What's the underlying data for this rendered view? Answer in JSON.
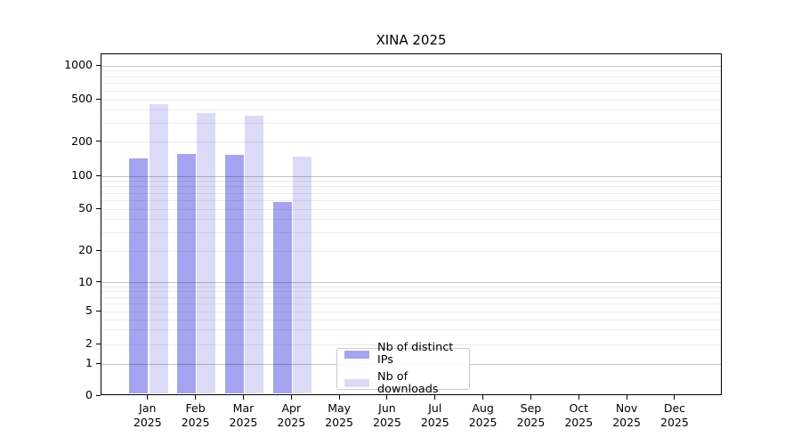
{
  "chart_data": {
    "type": "bar",
    "title": "XINA 2025",
    "x_categories": [
      {
        "month": "Jan",
        "year": "2025"
      },
      {
        "month": "Feb",
        "year": "2025"
      },
      {
        "month": "Mar",
        "year": "2025"
      },
      {
        "month": "Apr",
        "year": "2025"
      },
      {
        "month": "May",
        "year": "2025"
      },
      {
        "month": "Jun",
        "year": "2025"
      },
      {
        "month": "Jul",
        "year": "2025"
      },
      {
        "month": "Aug",
        "year": "2025"
      },
      {
        "month": "Sep",
        "year": "2025"
      },
      {
        "month": "Oct",
        "year": "2025"
      },
      {
        "month": "Nov",
        "year": "2025"
      },
      {
        "month": "Dec",
        "year": "2025"
      }
    ],
    "y_axis": {
      "scale": "symlog",
      "ticks": [
        0,
        1,
        2,
        5,
        10,
        20,
        50,
        100,
        200,
        500,
        1000
      ],
      "range": [
        0,
        1000
      ],
      "grid": true,
      "major_grid_values": [
        1,
        10,
        100,
        1000
      ],
      "minor_grid_values": [
        2,
        3,
        4,
        5,
        6,
        7,
        8,
        9,
        20,
        30,
        40,
        50,
        60,
        70,
        80,
        90,
        200,
        300,
        400,
        500,
        600,
        700,
        800,
        900
      ]
    },
    "series": [
      {
        "name": "Nb of distinct IPs",
        "color": "#a4a4f0",
        "values": [
          140,
          155,
          152,
          57,
          null,
          null,
          null,
          null,
          null,
          null,
          null,
          null
        ]
      },
      {
        "name": "Nb of downloads",
        "color": "#dbdbf8",
        "values": [
          445,
          365,
          345,
          145,
          null,
          null,
          null,
          null,
          null,
          null,
          null,
          null
        ]
      }
    ],
    "legend": {
      "position": "bottom-center",
      "items": [
        "Nb of distinct IPs",
        "Nb of downloads"
      ]
    }
  }
}
